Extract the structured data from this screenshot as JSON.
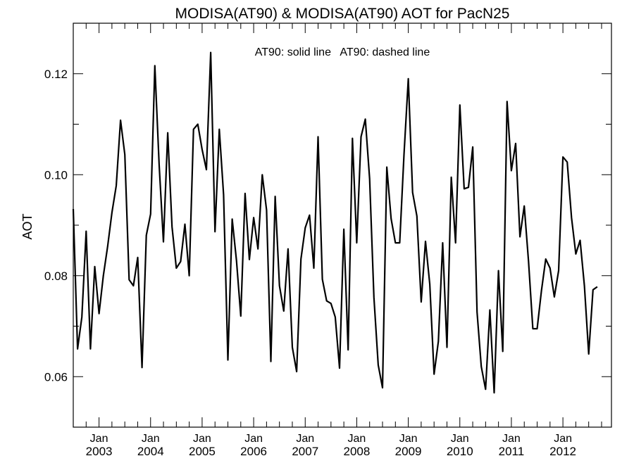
{
  "chart_data": {
    "type": "line",
    "title": "MODISA(AT90) & MODISA(AT90)  AOT for PacN25",
    "ylabel": "AOT",
    "xlabel": "",
    "annotation": "AT90: solid line   AT90: dashed line",
    "x_start": "2002-07",
    "x_end": "2012-12",
    "xlim": [
      "2002-07",
      "2012-12"
    ],
    "ylim": [
      0.05,
      0.13
    ],
    "y_ticks": [
      "0.06",
      "0.08",
      "0.10",
      "0.12"
    ],
    "x_ticks": [
      {
        "month": "Jan",
        "year": "2003",
        "date": "2003-01"
      },
      {
        "month": "Jan",
        "year": "2004",
        "date": "2004-01"
      },
      {
        "month": "Jan",
        "year": "2005",
        "date": "2005-01"
      },
      {
        "month": "Jan",
        "year": "2006",
        "date": "2006-01"
      },
      {
        "month": "Jan",
        "year": "2007",
        "date": "2007-01"
      },
      {
        "month": "Jan",
        "year": "2008",
        "date": "2008-01"
      },
      {
        "month": "Jan",
        "year": "2009",
        "date": "2009-01"
      },
      {
        "month": "Jan",
        "year": "2010",
        "date": "2010-01"
      },
      {
        "month": "Jan",
        "year": "2011",
        "date": "2011-01"
      },
      {
        "month": "Jan",
        "year": "2012",
        "date": "2012-01"
      }
    ],
    "grid": false,
    "series": [
      {
        "style": "solid",
        "values": [
          0.0932,
          0.0655,
          0.0718,
          0.0888,
          0.0655,
          0.0818,
          0.0725,
          0.08,
          0.0858,
          0.0925,
          0.0978,
          0.1108,
          0.104,
          0.0792,
          0.078,
          0.0836,
          0.0618,
          0.088,
          0.0922,
          0.1216,
          0.102,
          0.0867,
          0.1083,
          0.0897,
          0.0815,
          0.0828,
          0.0902,
          0.08,
          0.109,
          0.11,
          0.105,
          0.101,
          0.1242,
          0.0887,
          0.109,
          0.096,
          0.0633,
          0.0912,
          0.083,
          0.072,
          0.0963,
          0.0832,
          0.0915,
          0.0853,
          0.1,
          0.093,
          0.063,
          0.0957,
          0.078,
          0.073,
          0.0853,
          0.0658,
          0.061,
          0.0833,
          0.0895,
          0.092,
          0.0815,
          0.1075,
          0.0793,
          0.075,
          0.0745,
          0.0718,
          0.0617,
          0.0892,
          0.0653,
          0.1072,
          0.0865,
          0.1075,
          0.111,
          0.0992,
          0.0757,
          0.0623,
          0.0578,
          0.1015,
          0.0913,
          0.0865,
          0.0865,
          0.104,
          0.119,
          0.0965,
          0.0918,
          0.0748,
          0.0868,
          0.0783,
          0.0605,
          0.067,
          0.0865,
          0.0658,
          0.0995,
          0.0865,
          0.1138,
          0.0972,
          0.0975,
          0.1055,
          0.0728,
          0.062,
          0.0575,
          0.0732,
          0.0568,
          0.081,
          0.065,
          0.1145,
          0.1008,
          0.1062,
          0.0877,
          0.0938,
          0.0828,
          0.0695,
          0.0695,
          0.077,
          0.0833,
          0.0815,
          0.0758,
          0.081,
          0.1035,
          0.1025,
          0.0915,
          0.0843,
          0.087,
          0.078,
          0.0645,
          0.0772,
          0.0778
        ]
      }
    ]
  }
}
